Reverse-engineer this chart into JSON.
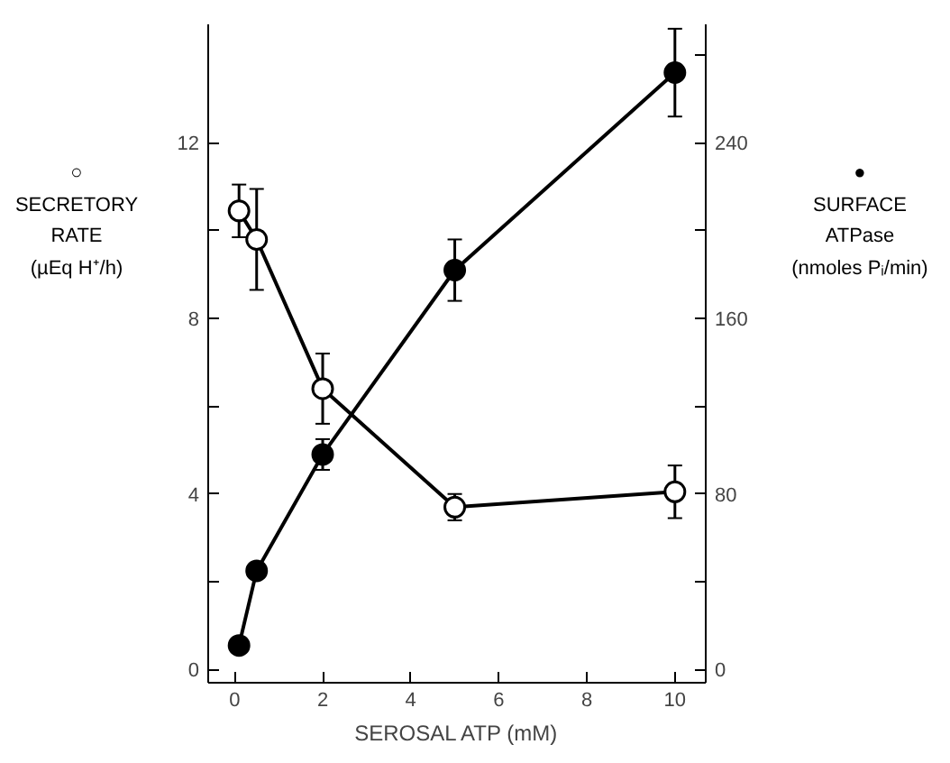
{
  "chart_data": {
    "type": "line",
    "xlabel": "SEROSAL ATP (mM)",
    "ylabel": "○\nSECRETORY\nRATE\n(µEq H⁺/h)",
    "y2label": "●\nSURFACE\nATPase\n(nmoles Pᵢ/min)",
    "x": [
      0.1,
      0.5,
      2,
      5,
      10
    ],
    "xlim": [
      -0.6,
      10.7
    ],
    "xticks": [
      0,
      2,
      4,
      6,
      8,
      10
    ],
    "ylim": [
      -0.3,
      14.7
    ],
    "yticks": [
      0,
      {
        "value": 2,
        "label": null
      },
      4,
      {
        "value": 6,
        "label": null
      },
      8,
      {
        "value": 10,
        "label": null
      },
      12
    ],
    "y2lim": [
      -6,
      294
    ],
    "y2ticks": [
      0,
      {
        "value": 40,
        "label": null
      },
      80,
      {
        "value": 120,
        "label": null
      },
      160,
      {
        "value": 200,
        "label": null
      },
      240,
      {
        "value": 280,
        "label": null
      }
    ],
    "grid": false,
    "series": [
      {
        "color": "#000000",
        "marker": "circle_open",
        "values": [
          10.45,
          9.8,
          6.4,
          3.7,
          4.05
        ],
        "errors": [
          0.6,
          1.15,
          0.8,
          0.3,
          0.6
        ]
      },
      {
        "color": "#000000",
        "marker": "circle",
        "axis": "y2",
        "values": [
          11,
          45,
          98,
          182,
          272
        ],
        "errors": [
          2,
          3,
          7,
          14,
          20
        ]
      }
    ]
  }
}
